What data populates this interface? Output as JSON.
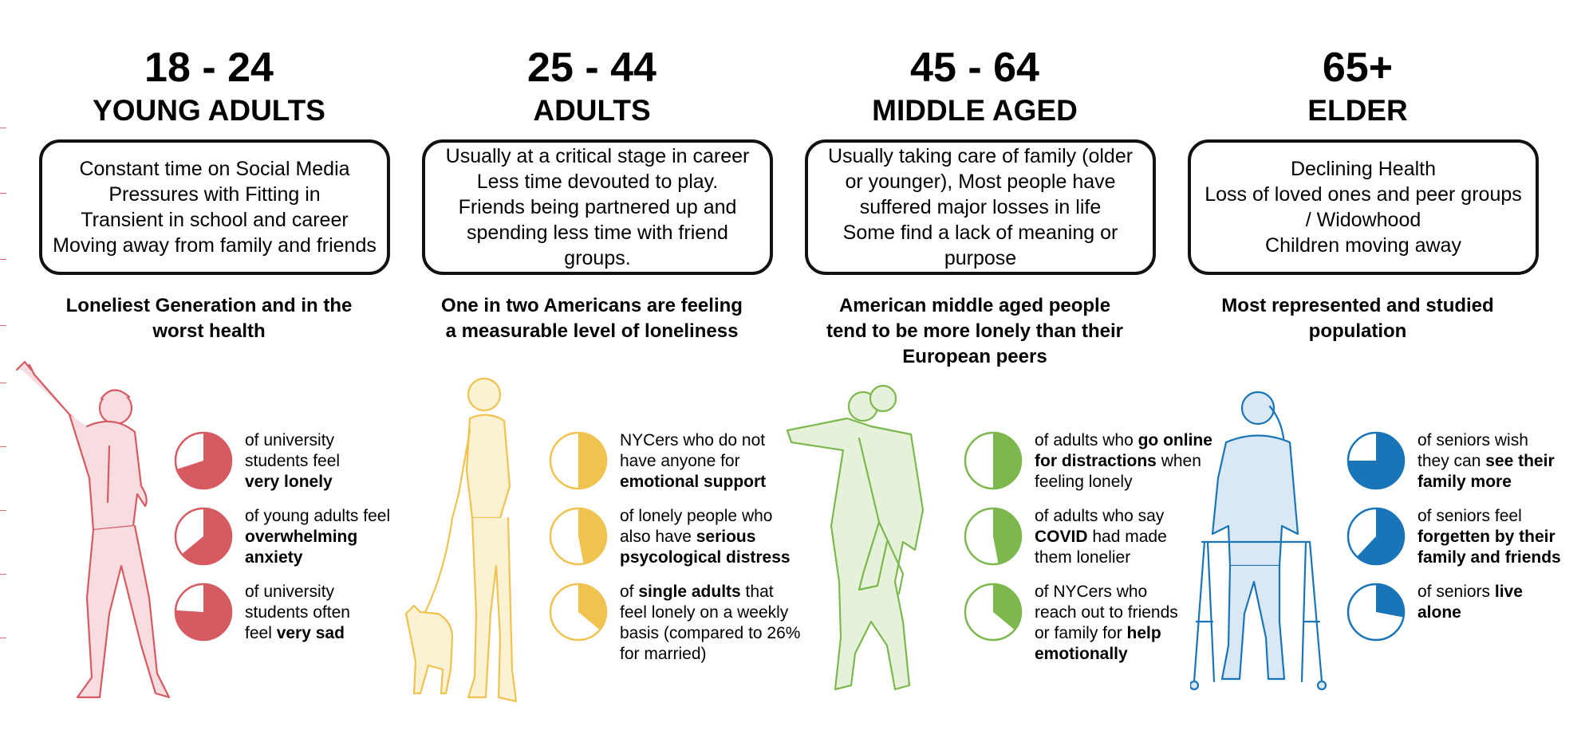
{
  "colors": {
    "red": "#d65a62",
    "red_fill": "#f8dde0",
    "yellow": "#f0c24f",
    "yellow_fill": "#fbf1d3",
    "green": "#7db84e",
    "green_fill": "#e6f1da",
    "blue": "#1a75b8",
    "blue_fill": "#d9e8f4"
  },
  "groups": [
    {
      "age": "18 - 24",
      "category": "YOUNG ADULTS",
      "box_lines": [
        "Constant time on Social Media",
        "Pressures with Fitting in",
        "Transient in school and career",
        "Moving away from family and friends"
      ],
      "headline_lines": [
        "Loneliest Generation and in the",
        "worst health"
      ],
      "illustration_icon": "pointing-person-icon",
      "stats": [
        {
          "fraction": 0.7,
          "lines": [
            [
              "of university",
              ""
            ],
            [
              "students feel",
              ""
            ],
            [
              "",
              "very lonely"
            ]
          ]
        },
        {
          "fraction": 0.64,
          "lines": [
            [
              "of young adults feel",
              ""
            ],
            [
              "",
              "overwhelming"
            ],
            [
              "",
              "anxiety"
            ]
          ]
        },
        {
          "fraction": 0.76,
          "lines": [
            [
              "of university",
              ""
            ],
            [
              "students often",
              ""
            ],
            [
              "feel ",
              "very sad"
            ]
          ]
        }
      ]
    },
    {
      "age": "25 - 44",
      "category": "ADULTS",
      "box_lines": [
        "Usually at a critical stage in career",
        "Less time devouted to play.",
        "Friends being partnered up and",
        "spending less time with friend",
        "groups."
      ],
      "headline_lines": [
        "One in two Americans are feeling",
        "a measurable level of loneliness"
      ],
      "illustration_icon": "person-walking-dog-icon",
      "stats": [
        {
          "fraction": 0.5,
          "lines": [
            [
              "NYCers who do not",
              ""
            ],
            [
              "have anyone for",
              ""
            ],
            [
              "",
              "emotional support"
            ]
          ]
        },
        {
          "fraction": 0.47,
          "lines": [
            [
              "of lonely people who",
              ""
            ],
            [
              "also have ",
              "serious"
            ],
            [
              "",
              "psycological distress"
            ]
          ]
        },
        {
          "fraction": 0.36,
          "lines": [
            [
              "of ",
              "single adults",
              " that"
            ],
            [
              "feel lonely on a weekly",
              ""
            ],
            [
              "basis (compared to 26%",
              ""
            ],
            [
              "for married)",
              ""
            ]
          ]
        }
      ]
    },
    {
      "age": "45 - 64",
      "category": "MIDDLE AGED",
      "box_lines": [
        "Usually taking care of family (older",
        "or younger), Most people have",
        "suffered major losses in life",
        "Some find a lack of meaning or",
        "purpose"
      ],
      "headline_lines": [
        "American middle aged people",
        "tend to be more lonely than their",
        "European peers"
      ],
      "illustration_icon": "piggyback-carry-icon",
      "stats": [
        {
          "fraction": 0.5,
          "lines": [
            [
              "of adults who ",
              "go online"
            ],
            [
              "",
              "for distractions",
              " when"
            ],
            [
              "feeling lonely",
              ""
            ]
          ]
        },
        {
          "fraction": 0.47,
          "lines": [
            [
              "of adults who say",
              ""
            ],
            [
              "",
              "COVID",
              " had made"
            ],
            [
              "them lonelier",
              ""
            ]
          ]
        },
        {
          "fraction": 0.36,
          "lines": [
            [
              "of NYCers who",
              ""
            ],
            [
              "reach out to friends",
              ""
            ],
            [
              "or family for ",
              "help"
            ],
            [
              "",
              "emotionally"
            ]
          ]
        }
      ]
    },
    {
      "age": "65+",
      "category": "ELDER",
      "box_lines": [
        "Declining Health",
        "Loss of loved ones and peer groups",
        "/ Widowhood",
        "Children moving away"
      ],
      "headline_lines": [
        "Most represented and studied",
        "population"
      ],
      "illustration_icon": "elder-with-walker-icon",
      "stats": [
        {
          "fraction": 0.75,
          "lines": [
            [
              "of seniors wish",
              ""
            ],
            [
              "they can ",
              "see their"
            ],
            [
              "",
              "family more"
            ]
          ]
        },
        {
          "fraction": 0.62,
          "lines": [
            [
              "of seniors feel",
              ""
            ],
            [
              "",
              "forgetten by their"
            ],
            [
              "",
              "family and friends"
            ]
          ]
        },
        {
          "fraction": 0.28,
          "lines": [
            [
              "of seniors ",
              "live"
            ],
            [
              "",
              "alone"
            ]
          ]
        }
      ]
    }
  ]
}
